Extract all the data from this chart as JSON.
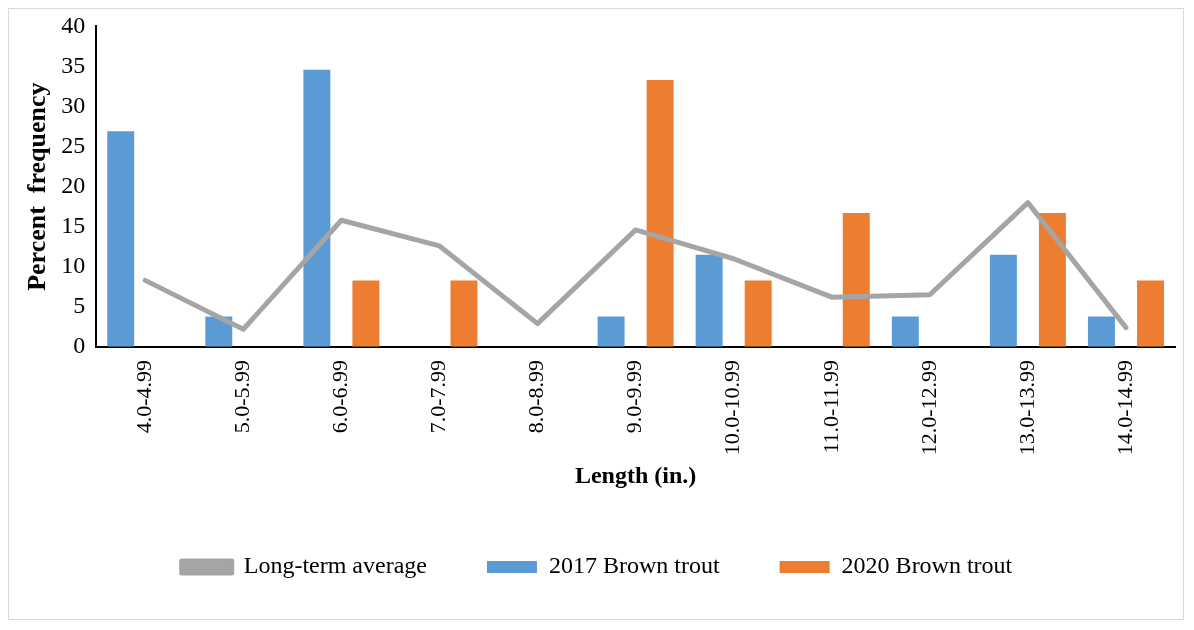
{
  "chart_data": {
    "type": "bar",
    "xlabel": "Length (in.)",
    "ylabel": "Percent  frequency",
    "categories": [
      "4.0-4.99",
      "5.0-5.99",
      "6.0-6.99",
      "7.0-7.99",
      "8.0-8.99",
      "9.0-9.99",
      "10.0-10.99",
      "11.0-11.99",
      "12.0-12.99",
      "13.0-13.99",
      "14.0-14.99"
    ],
    "series": [
      {
        "name": "2017 Brown trout",
        "color": "#5b9bd5",
        "values": [
          26.9,
          3.8,
          34.6,
          0,
          0,
          3.8,
          11.5,
          0,
          3.8,
          11.5,
          3.8
        ]
      },
      {
        "name": "2020 Brown trout",
        "color": "#ed7d31",
        "values": [
          0,
          0,
          8.3,
          8.3,
          0,
          33.3,
          8.3,
          16.7,
          0,
          16.7,
          8.3
        ]
      },
      {
        "name": "Long-term average",
        "type": "line",
        "color": "#a5a5a5",
        "values": [
          8.3,
          2.2,
          15.8,
          12.6,
          2.9,
          14.6,
          11.0,
          6.2,
          6.5,
          18.0,
          2.4
        ]
      }
    ],
    "ylim": [
      0,
      40
    ],
    "yticks": [
      0,
      5,
      10,
      15,
      20,
      25,
      30,
      35,
      40
    ],
    "grid": false,
    "legend": "bottom",
    "marker": "none"
  }
}
